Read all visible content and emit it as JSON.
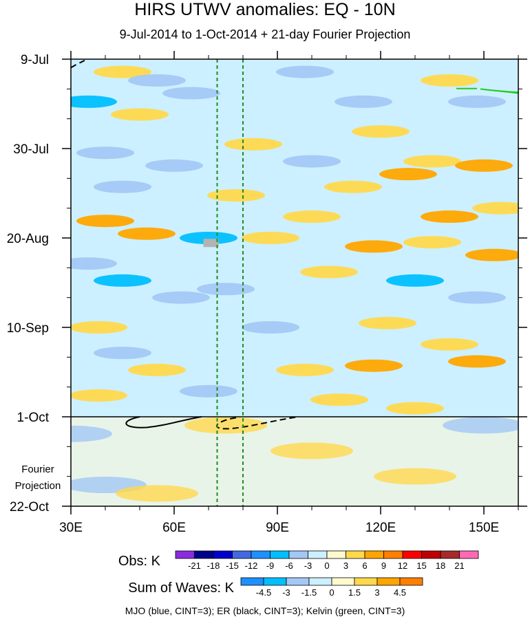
{
  "chart_data": {
    "type": "heatmap",
    "title": "HIRS UTWV anomalies: EQ - 10N",
    "subtitle": "9-Jul-2014 to 1-Oct-2014 + 21-day Fourier Projection",
    "x": {
      "label": "",
      "range": [
        30,
        160
      ],
      "ticks": [
        {
          "value": 30,
          "label": "30E"
        },
        {
          "value": 60,
          "label": "60E"
        },
        {
          "value": 90,
          "label": "90E"
        },
        {
          "value": 120,
          "label": "120E"
        },
        {
          "value": 150,
          "label": "150E"
        }
      ]
    },
    "y": {
      "label": "",
      "range_days": [
        0,
        105
      ],
      "ticks": [
        {
          "day": 0,
          "label": "9-Jul"
        },
        {
          "day": 21,
          "label": "30-Jul"
        },
        {
          "day": 42,
          "label": "20-Aug"
        },
        {
          "day": 63,
          "label": "10-Sep"
        },
        {
          "day": 84,
          "label": "1-Oct"
        },
        {
          "day": 105,
          "label": "22-Oct"
        }
      ],
      "projection_label": [
        "Fourier",
        "Projection"
      ],
      "observation_end_day": 84
    },
    "reference_lines": [
      72.5,
      80
    ],
    "obs_colorbar": {
      "label": "Obs: K",
      "levels": [
        "-21",
        "-18",
        "-15",
        "-12",
        "-9",
        "-6",
        "-3",
        "0",
        "3",
        "6",
        "9",
        "12",
        "15",
        "18",
        "21"
      ],
      "colors": [
        "#8a2be2",
        "#00008b",
        "#0000cd",
        "#4169e1",
        "#1e90ff",
        "#00bfff",
        "#a3c8f5",
        "#ccf0ff",
        "#fffacd",
        "#ffd84d",
        "#ffa500",
        "#ff7f00",
        "#ff0000",
        "#c00000",
        "#a52a2a",
        "#ff69b4"
      ]
    },
    "waves_colorbar": {
      "label": "Sum of Waves: K",
      "levels": [
        "-4.5",
        "-3",
        "-1.5",
        "0",
        "1.5",
        "3",
        "4.5"
      ],
      "colors": [
        "#1e90ff",
        "#00bfff",
        "#a3c8f5",
        "#ccf0ff",
        "#fffacd",
        "#ffd84d",
        "#ffa500",
        "#ff7f00"
      ]
    },
    "anomaly_blobs_K": [
      {
        "lon": 45,
        "day": 3,
        "value": 3
      },
      {
        "lon": 55,
        "day": 5,
        "value": -3
      },
      {
        "lon": 98,
        "day": 3,
        "value": -3
      },
      {
        "lon": 140,
        "day": 5,
        "value": 3
      },
      {
        "lon": 35,
        "day": 10,
        "value": -6
      },
      {
        "lon": 65,
        "day": 8,
        "value": -3
      },
      {
        "lon": 115,
        "day": 10,
        "value": -3
      },
      {
        "lon": 148,
        "day": 10,
        "value": -3
      },
      {
        "lon": 50,
        "day": 13,
        "value": 3
      },
      {
        "lon": 83,
        "day": 20,
        "value": 3
      },
      {
        "lon": 120,
        "day": 17,
        "value": 3
      },
      {
        "lon": 40,
        "day": 22,
        "value": -3
      },
      {
        "lon": 60,
        "day": 25,
        "value": -3
      },
      {
        "lon": 100,
        "day": 24,
        "value": -3
      },
      {
        "lon": 135,
        "day": 24,
        "value": 3
      },
      {
        "lon": 150,
        "day": 25,
        "value": 6
      },
      {
        "lon": 128,
        "day": 27,
        "value": 6
      },
      {
        "lon": 45,
        "day": 30,
        "value": -3
      },
      {
        "lon": 78,
        "day": 32,
        "value": 3
      },
      {
        "lon": 112,
        "day": 30,
        "value": 3
      },
      {
        "lon": 40,
        "day": 38,
        "value": 6
      },
      {
        "lon": 100,
        "day": 37,
        "value": 3
      },
      {
        "lon": 140,
        "day": 37,
        "value": 6
      },
      {
        "lon": 155,
        "day": 35,
        "value": 3
      },
      {
        "lon": 52,
        "day": 41,
        "value": 6
      },
      {
        "lon": 70,
        "day": 42,
        "value": -6
      },
      {
        "lon": 88,
        "day": 42,
        "value": 3
      },
      {
        "lon": 118,
        "day": 44,
        "value": 6
      },
      {
        "lon": 135,
        "day": 43,
        "value": 3
      },
      {
        "lon": 153,
        "day": 46,
        "value": 6
      },
      {
        "lon": 35,
        "day": 48,
        "value": -3
      },
      {
        "lon": 45,
        "day": 52,
        "value": -6
      },
      {
        "lon": 75,
        "day": 54,
        "value": -3
      },
      {
        "lon": 105,
        "day": 50,
        "value": 3
      },
      {
        "lon": 130,
        "day": 52,
        "value": -6
      },
      {
        "lon": 148,
        "day": 56,
        "value": -3
      },
      {
        "lon": 62,
        "day": 56,
        "value": -3
      },
      {
        "lon": 38,
        "day": 63,
        "value": 3
      },
      {
        "lon": 88,
        "day": 63,
        "value": -3
      },
      {
        "lon": 122,
        "day": 62,
        "value": 3
      },
      {
        "lon": 140,
        "day": 67,
        "value": 3
      },
      {
        "lon": 45,
        "day": 69,
        "value": -3
      },
      {
        "lon": 55,
        "day": 73,
        "value": 3
      },
      {
        "lon": 98,
        "day": 73,
        "value": 3
      },
      {
        "lon": 118,
        "day": 72,
        "value": 6
      },
      {
        "lon": 148,
        "day": 71,
        "value": 6
      },
      {
        "lon": 38,
        "day": 79,
        "value": 3
      },
      {
        "lon": 70,
        "day": 78,
        "value": -3
      },
      {
        "lon": 108,
        "day": 80,
        "value": 3
      },
      {
        "lon": 130,
        "day": 82,
        "value": 3
      }
    ],
    "projection_blobs_K": [
      {
        "lon": 30,
        "day": 88,
        "value": -1.5
      },
      {
        "lon": 40,
        "day": 100,
        "value": -1.5
      },
      {
        "lon": 75,
        "day": 86,
        "value": 1.5
      },
      {
        "lon": 100,
        "day": 92,
        "value": 1.5
      },
      {
        "lon": 130,
        "day": 98,
        "value": 1.5
      },
      {
        "lon": 55,
        "day": 102,
        "value": 1.5
      },
      {
        "lon": 150,
        "day": 86,
        "value": -1.5
      }
    ]
  },
  "footer_note": "MJO (blue, CINT=3); ER (black, CINT=3); Kelvin (green, CINT=3)",
  "colors": {
    "frame": "#000000",
    "reference_line": "#228b22",
    "er_contour": "#000000",
    "kelvin_contour": "#22cc22",
    "missing": "#b3b3b3"
  }
}
